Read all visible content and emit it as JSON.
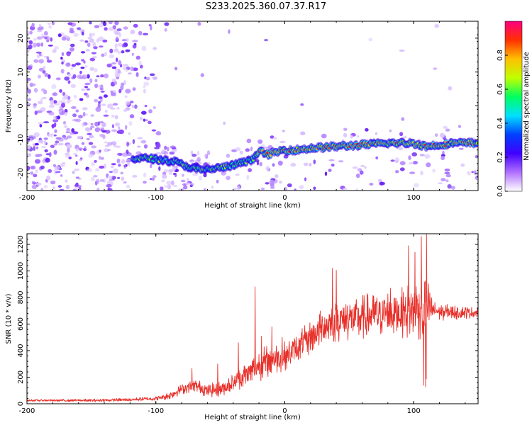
{
  "title": "S233.2025.360.07.37.R17",
  "colors": {
    "snr_line": "#e8302a",
    "axis": "#000000"
  },
  "chart_data": [
    {
      "type": "heatmap",
      "name": "spectrogram",
      "xlabel": "Height of straight line (km)",
      "ylabel": "Frequency (Hz)",
      "xlim": [
        -200,
        150
      ],
      "ylim": [
        -25,
        25
      ],
      "xticks": [
        -200,
        -100,
        0,
        100
      ],
      "xtick_labels": [
        "-200",
        "-100",
        "0",
        "100"
      ],
      "yticks": [
        20,
        10,
        0,
        -10,
        -20
      ],
      "ytick_labels": [
        "20",
        "10",
        "0",
        "-10",
        "-20"
      ],
      "colorbar": {
        "label": "Normalized spectral amplitude",
        "range": [
          0,
          1
        ],
        "ticks": [
          0.0,
          0.2,
          0.4,
          0.6,
          0.8
        ],
        "tick_labels": [
          "0.0",
          "0.2",
          "0.4",
          "0.6",
          "0.8"
        ],
        "stops": [
          "#ffffff",
          "#b070ff",
          "#4000ff",
          "#0040ff",
          "#00e0ff",
          "#00ff60",
          "#c0ff00",
          "#ffc000",
          "#ff3000",
          "#ff0080"
        ]
      },
      "signal_ridge": {
        "x": [
          -115,
          -105,
          -95,
          -85,
          -75,
          -65,
          -55,
          -45,
          -35,
          -25,
          -20,
          -15,
          -10,
          0,
          10,
          20,
          40,
          60,
          80,
          100,
          110,
          130,
          150
        ],
        "y": [
          -15.5,
          -15.5,
          -16,
          -16.5,
          -18,
          -19,
          -18.5,
          -18,
          -17,
          -16,
          -13,
          -14.5,
          -14,
          -13,
          -13,
          -12.5,
          -12,
          -11.5,
          -11,
          -11,
          -12,
          -11,
          -11
        ]
      }
    },
    {
      "type": "line",
      "name": "snr",
      "xlabel": "Height of straight line (km)",
      "ylabel": "SNR (10 * v/v)",
      "xlim": [
        -200,
        150
      ],
      "ylim": [
        0,
        1280
      ],
      "xticks": [
        -200,
        -100,
        0,
        100
      ],
      "xtick_labels": [
        "-200",
        "-100",
        "0",
        "100"
      ],
      "yticks": [
        0,
        200,
        400,
        600,
        800,
        1000,
        1200
      ],
      "ytick_labels": [
        "0",
        "200",
        "400",
        "600",
        "800",
        "1000",
        "1200"
      ],
      "trend": {
        "x": [
          -200,
          -150,
          -120,
          -100,
          -90,
          -80,
          -70,
          -60,
          -50,
          -40,
          -30,
          -20,
          -10,
          0,
          10,
          20,
          30,
          40,
          50,
          60,
          70,
          80,
          90,
          100,
          105,
          110,
          120,
          150
        ],
        "y": [
          25,
          25,
          30,
          40,
          60,
          110,
          140,
          100,
          110,
          160,
          220,
          290,
          330,
          360,
          420,
          500,
          580,
          620,
          640,
          650,
          670,
          680,
          690,
          700,
          720,
          720,
          690,
          685
        ]
      },
      "spread": {
        "x": [
          -200,
          -100,
          -85,
          -70,
          -55,
          -40,
          -25,
          -15,
          0,
          20,
          35,
          50,
          70,
          90,
          100,
          110,
          115,
          150
        ],
        "y": [
          8,
          15,
          35,
          50,
          55,
          70,
          110,
          130,
          110,
          130,
          160,
          170,
          180,
          190,
          230,
          260,
          70,
          40
        ]
      },
      "peaks": {
        "x": [
          -72,
          -52,
          -36,
          -23,
          -18,
          -10,
          -2,
          37,
          40,
          82,
          96,
          101,
          106,
          110
        ],
        "y": [
          265,
          300,
          460,
          880,
          510,
          580,
          500,
          1020,
          1005,
          870,
          1190,
          1140,
          1260,
          1280
        ]
      }
    }
  ]
}
